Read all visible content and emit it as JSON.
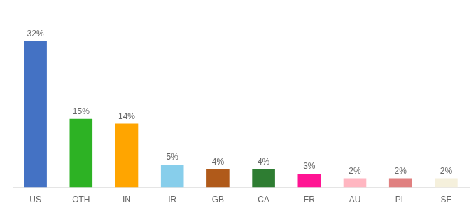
{
  "chart_data": {
    "type": "bar",
    "categories": [
      "US",
      "OTH",
      "IN",
      "IR",
      "GB",
      "CA",
      "FR",
      "AU",
      "PL",
      "SE"
    ],
    "values": [
      32,
      15,
      14,
      5,
      4,
      4,
      3,
      2,
      2,
      2
    ],
    "value_labels": [
      "32%",
      "15%",
      "14%",
      "5%",
      "4%",
      "4%",
      "3%",
      "2%",
      "2%",
      "2%"
    ],
    "data_labels": true,
    "colors": [
      "#4472C4",
      "#2DB224",
      "#FFA500",
      "#87CEEB",
      "#B05A1A",
      "#2E7D32",
      "#FF1493",
      "#FFB6C1",
      "#E08080",
      "#F5F0DC"
    ],
    "ylim": [
      0,
      38
    ],
    "tick_labels": "x",
    "grid": false
  }
}
